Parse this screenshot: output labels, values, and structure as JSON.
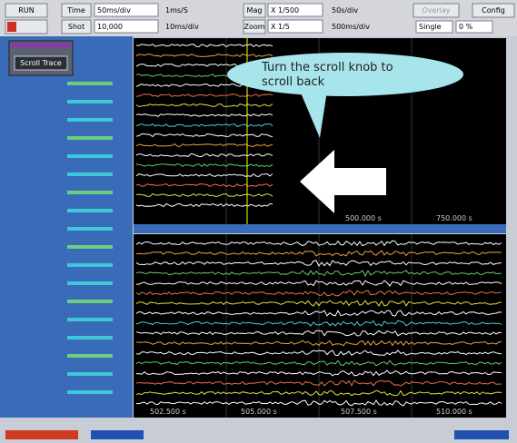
{
  "toolbar": {
    "run": "RUN",
    "time": "Time",
    "time_div": "50ms/div",
    "sample": "1ms/S",
    "shot": "Shot",
    "shot_value": "10,000",
    "shot_time": "10ms/div",
    "mag": "Mag",
    "mag_value": "X 1/500",
    "mag_div": "50s/div",
    "zoom": "Zoom",
    "zoom_value": "X 1/5",
    "zoom_div": "500ms/div",
    "overlay": "Overlay",
    "config": "Config",
    "trigger": "Single",
    "trigger_value": "0 %"
  },
  "panel": {
    "button": "Scroll Trace"
  },
  "callout": {
    "lines": [
      "Turn the scroll knob to",
      "scroll back"
    ]
  },
  "upper_axis": [
    "500.000 s",
    "750.000 s"
  ],
  "lower_axis": [
    "502.500 s",
    "505.000 s",
    "507.500 s",
    "510.000 s"
  ]
}
